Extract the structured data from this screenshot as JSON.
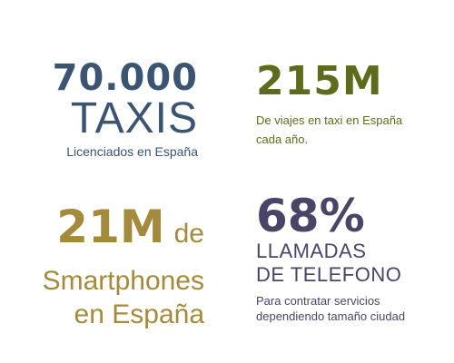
{
  "stats": {
    "taxis": {
      "number": "70.000",
      "word": "TAXIS",
      "caption": "Licenciados en España",
      "color": "#3b5472"
    },
    "trips": {
      "number": "215M",
      "caption": "De viajes en taxi en España cada año.",
      "color": "#5f6b1c"
    },
    "smartphones": {
      "number": "21M",
      "connector": "de",
      "line2": "Smartphones",
      "line3": "en España",
      "color": "#a38a3c"
    },
    "calls": {
      "number": "68%",
      "line1": "LLAMADAS",
      "line2": "DE TELEFONO",
      "caption_line1": "Para contratar servicios",
      "caption_line2": "dependiendo tamaño ciudad",
      "color": "#4a4566"
    }
  }
}
